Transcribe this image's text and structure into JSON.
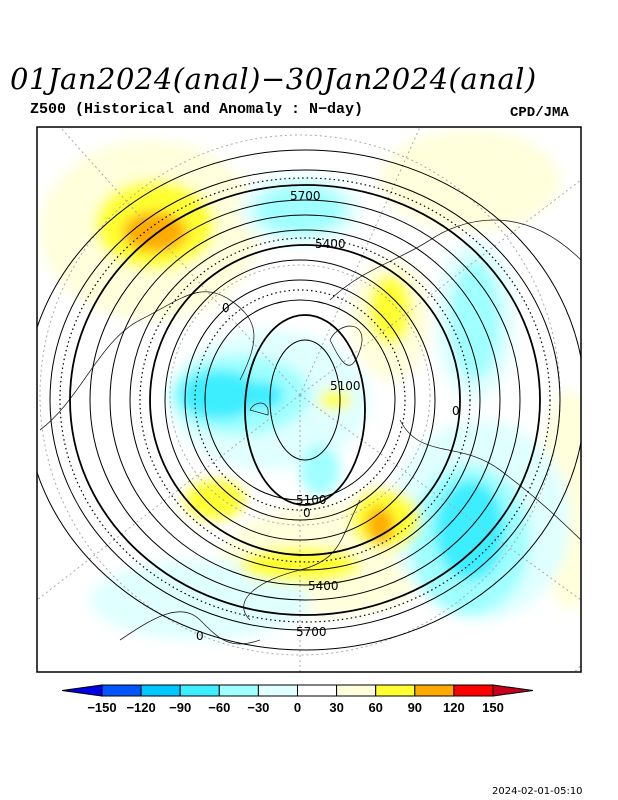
{
  "header": {
    "title": "01Jan2024(anal)−30Jan2024(anal)",
    "subtitle": "Z500 (Historical and Anomaly : N−day)",
    "credit": "CPD/JMA"
  },
  "map": {
    "projection": "north-polar-stereographic",
    "contour_labels": [
      "5700",
      "5400",
      "5100",
      "5100",
      "5400",
      "5700",
      "0",
      "0",
      "0",
      "0"
    ]
  },
  "colorbar": {
    "ticks": [
      "−150",
      "−120",
      "−90",
      "−60",
      "−30",
      "0",
      "30",
      "60",
      "90",
      "120",
      "150"
    ],
    "colors": [
      "#0000e6",
      "#0055ff",
      "#00c8ff",
      "#3ceeff",
      "#a0ffff",
      "#e0ffff",
      "#ffffff",
      "#ffffdc",
      "#ffff33",
      "#ffaa00",
      "#ff0000",
      "#c8001e"
    ]
  },
  "footer": {
    "timestamp": "2024-02-01-05:10"
  }
}
